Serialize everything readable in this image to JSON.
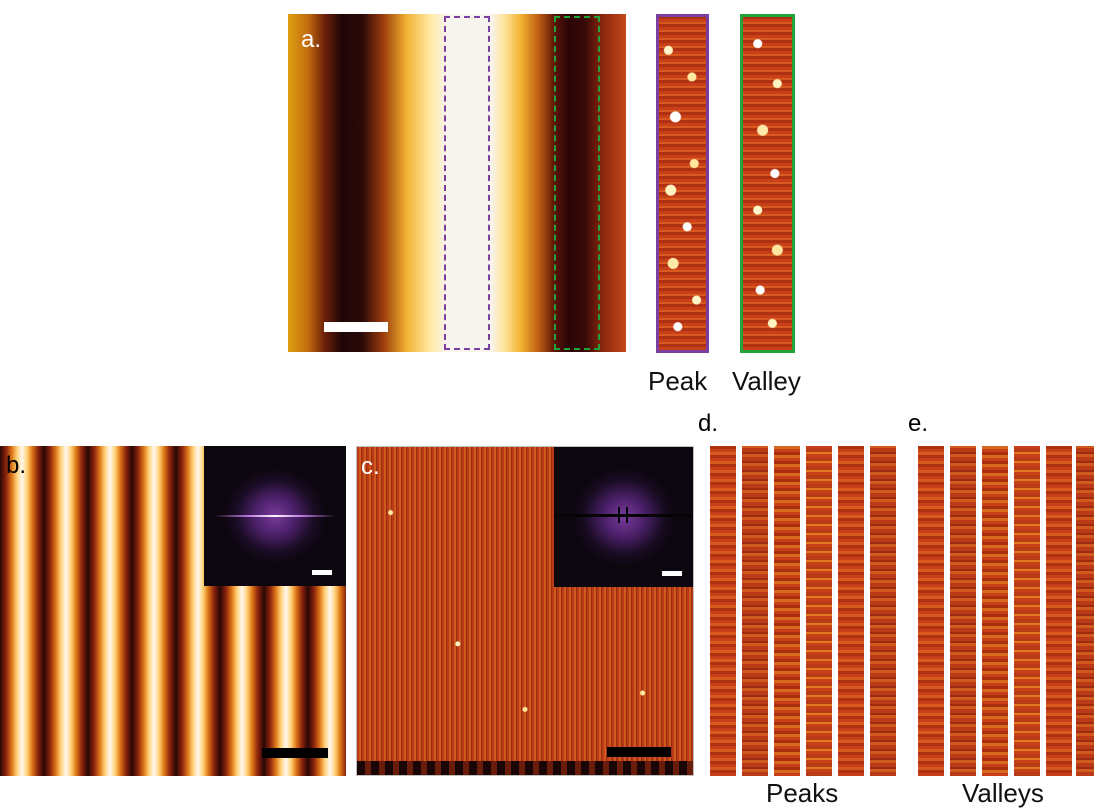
{
  "panels": {
    "a": {
      "label": "a."
    },
    "b": {
      "label": "b."
    },
    "c": {
      "label": "c."
    },
    "d": {
      "label": "d."
    },
    "e": {
      "label": "e."
    }
  },
  "captions": {
    "peak": "Peak",
    "valley": "Valley",
    "peaks": "Peaks",
    "valleys": "Valleys"
  },
  "colors": {
    "peak_box": "#7b3fa0",
    "valley_box": "#1fa33a",
    "scalebar_white": "#ffffff",
    "scalebar_black": "#000000"
  }
}
